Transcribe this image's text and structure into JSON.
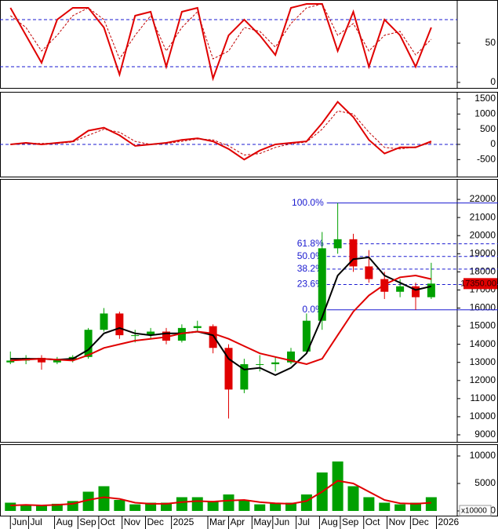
{
  "chart_data": [
    {
      "type": "line",
      "x": [
        0,
        3,
        6,
        9,
        12,
        15,
        18,
        21,
        24,
        27,
        30,
        33,
        36,
        39,
        42,
        45,
        48,
        51,
        54,
        57,
        60,
        63,
        66,
        69,
        72,
        75,
        78,
        81
      ],
      "xlim": [
        -2,
        86
      ],
      "ylim": [
        -7,
        105
      ],
      "yticks": [
        0,
        50
      ],
      "levels": [
        20,
        80
      ],
      "level_color": "#1a1ad0",
      "lines": [
        {
          "color": "#e00000",
          "dash": false,
          "values": [
            95,
            60,
            25,
            80,
            95,
            95,
            70,
            10,
            85,
            90,
            20,
            90,
            95,
            5,
            60,
            80,
            60,
            35,
            95,
            100,
            100,
            40,
            90,
            20,
            80,
            60,
            20,
            70
          ]
        },
        {
          "color": "#c00000",
          "dash": true,
          "values": [
            85,
            70,
            40,
            60,
            85,
            95,
            80,
            30,
            60,
            85,
            40,
            70,
            90,
            30,
            40,
            70,
            65,
            45,
            75,
            95,
            100,
            60,
            75,
            40,
            60,
            65,
            35,
            55
          ]
        }
      ]
    },
    {
      "type": "line",
      "x": [
        0,
        3,
        6,
        9,
        12,
        15,
        18,
        21,
        24,
        27,
        30,
        33,
        36,
        39,
        42,
        45,
        48,
        51,
        54,
        57,
        60,
        63,
        66,
        69,
        72,
        75,
        78,
        81
      ],
      "xlim": [
        -2,
        86
      ],
      "ylim": [
        -1060,
        1730
      ],
      "yticks": [
        -500,
        0,
        500,
        1000,
        1500
      ],
      "levels": [
        0
      ],
      "level_color": "#1a1ad0",
      "lines": [
        {
          "color": "#e00000",
          "dash": false,
          "values": [
            0,
            50,
            0,
            50,
            100,
            450,
            550,
            300,
            -50,
            0,
            50,
            150,
            200,
            100,
            -150,
            -500,
            -200,
            0,
            50,
            100,
            700,
            1400,
            900,
            150,
            -300,
            -100,
            -100,
            100
          ]
        },
        {
          "color": "#c00000",
          "dash": true,
          "values": [
            0,
            30,
            30,
            30,
            80,
            300,
            500,
            400,
            100,
            0,
            30,
            100,
            180,
            150,
            -50,
            -350,
            -300,
            -100,
            20,
            80,
            500,
            1100,
            1000,
            400,
            -100,
            -150,
            -80,
            50
          ]
        }
      ]
    },
    {
      "type": "candlestick",
      "x": [
        0,
        3,
        6,
        9,
        12,
        15,
        18,
        21,
        24,
        27,
        30,
        33,
        36,
        39,
        42,
        45,
        48,
        51,
        54,
        57,
        60,
        63,
        66,
        69,
        72,
        75,
        78,
        81
      ],
      "xlim": [
        -2,
        86
      ],
      "ylim": [
        8610,
        23130
      ],
      "yticks": [
        9000,
        10000,
        11000,
        12000,
        13000,
        14000,
        15000,
        16000,
        17000,
        18000,
        19000,
        20000,
        21000,
        22000
      ],
      "open": [
        13000,
        13100,
        13250,
        13000,
        13150,
        13300,
        14800,
        15700,
        14500,
        14500,
        14700,
        14200,
        14900,
        15000,
        13800,
        11500,
        12900,
        12900,
        13000,
        13600,
        15300,
        19300,
        19800,
        18300,
        17600,
        16900,
        17200,
        16600
      ],
      "high": [
        13600,
        13400,
        13400,
        13300,
        13400,
        14900,
        16000,
        15800,
        14800,
        14900,
        14900,
        15100,
        15300,
        15100,
        14000,
        13200,
        13400,
        13300,
        13800,
        15700,
        20200,
        21800,
        20100,
        19200,
        18000,
        17600,
        17400,
        18500
      ],
      "low": [
        12900,
        12900,
        12600,
        12900,
        13000,
        13200,
        14700,
        14300,
        14100,
        14300,
        14000,
        14100,
        14700,
        13500,
        9900,
        11300,
        12500,
        12500,
        12900,
        13500,
        14800,
        19000,
        18000,
        17400,
        16500,
        16600,
        15900,
        16500
      ],
      "close": [
        13100,
        13250,
        13000,
        13150,
        13300,
        14800,
        15700,
        14500,
        14500,
        14700,
        14200,
        14900,
        15000,
        13800,
        11500,
        12900,
        12900,
        13000,
        13600,
        15300,
        19300,
        19800,
        18300,
        17600,
        16900,
        17200,
        16600,
        17350
      ],
      "up_color": "#00a000",
      "down_color": "#e00000",
      "lines": [
        {
          "color": "#000000",
          "values": [
            13200,
            13200,
            13200,
            13150,
            13200,
            13700,
            14600,
            14900,
            14600,
            14500,
            14600,
            14600,
            14700,
            14500,
            13200,
            12600,
            12700,
            12300,
            12700,
            13500,
            15500,
            17800,
            18700,
            18800,
            17800,
            17400,
            17000,
            17200
          ]
        },
        {
          "color": "#e00000",
          "values": [
            13100,
            13150,
            13200,
            13150,
            13100,
            13400,
            13800,
            14000,
            14200,
            14300,
            14400,
            14600,
            14700,
            14600,
            14300,
            13900,
            13500,
            13300,
            13100,
            12900,
            13200,
            14500,
            15800,
            16700,
            17300,
            17700,
            17800,
            17600
          ]
        }
      ],
      "fib_color": "#1a1ad0",
      "fib_levels": [
        {
          "label": "100.0%",
          "value": 21800
        },
        {
          "label": "61.8%",
          "value": 19550
        },
        {
          "label": "50.0%",
          "value": 18850
        },
        {
          "label": "38.2%",
          "value": 18150
        },
        {
          "label": "23.6%",
          "value": 17300
        },
        {
          "label": "0.0%",
          "value": 15900
        }
      ],
      "last_price": {
        "value": 17350,
        "label": "17350.00"
      }
    },
    {
      "type": "bar",
      "x": [
        0,
        3,
        6,
        9,
        12,
        15,
        18,
        21,
        24,
        27,
        30,
        33,
        36,
        39,
        42,
        45,
        48,
        51,
        54,
        57,
        60,
        63,
        66,
        69,
        72,
        75,
        78,
        81
      ],
      "xlim": [
        -2,
        86
      ],
      "ylim": [
        -860,
        12140
      ],
      "yticks": [
        0,
        5000,
        10000
      ],
      "unit_label": "x10000",
      "color": "#00a000",
      "values": [
        1500,
        1200,
        1000,
        1300,
        1800,
        3500,
        4500,
        2000,
        1200,
        1500,
        1500,
        2500,
        2500,
        1800,
        3000,
        2000,
        1200,
        1500,
        1500,
        3000,
        7000,
        9000,
        4500,
        2500,
        1500,
        1200,
        1500,
        2500
      ],
      "lines": [
        {
          "color": "#e00000",
          "values": [
            1000,
            1100,
            1000,
            1100,
            1300,
            2000,
            2500,
            2200,
            1500,
            1300,
            1300,
            1600,
            1800,
            1700,
            1900,
            2000,
            1600,
            1400,
            1300,
            1800,
            3500,
            5500,
            5000,
            3500,
            2000,
            1400,
            1300,
            1500
          ]
        }
      ],
      "xticks": [
        {
          "value": 0,
          "label": "Jun"
        },
        {
          "value": 3.5,
          "label": "Jul"
        },
        {
          "value": 8.5,
          "label": "Aug"
        },
        {
          "value": 13,
          "label": "Sep"
        },
        {
          "value": 17,
          "label": "Oct"
        },
        {
          "value": 21.5,
          "label": "Nov"
        },
        {
          "value": 26,
          "label": "Dec"
        },
        {
          "value": 31,
          "label": "2025"
        },
        {
          "value": 38,
          "label": "Mar"
        },
        {
          "value": 42,
          "label": "Apr"
        },
        {
          "value": 46.5,
          "label": "May"
        },
        {
          "value": 50.5,
          "label": "Jun"
        },
        {
          "value": 55,
          "label": "Jul"
        },
        {
          "value": 59.5,
          "label": "Aug"
        },
        {
          "value": 63.5,
          "label": "Sep"
        },
        {
          "value": 68,
          "label": "Oct"
        },
        {
          "value": 72.5,
          "label": "Nov"
        },
        {
          "value": 77,
          "label": "Dec"
        },
        {
          "value": 82,
          "label": "2026"
        }
      ]
    }
  ]
}
